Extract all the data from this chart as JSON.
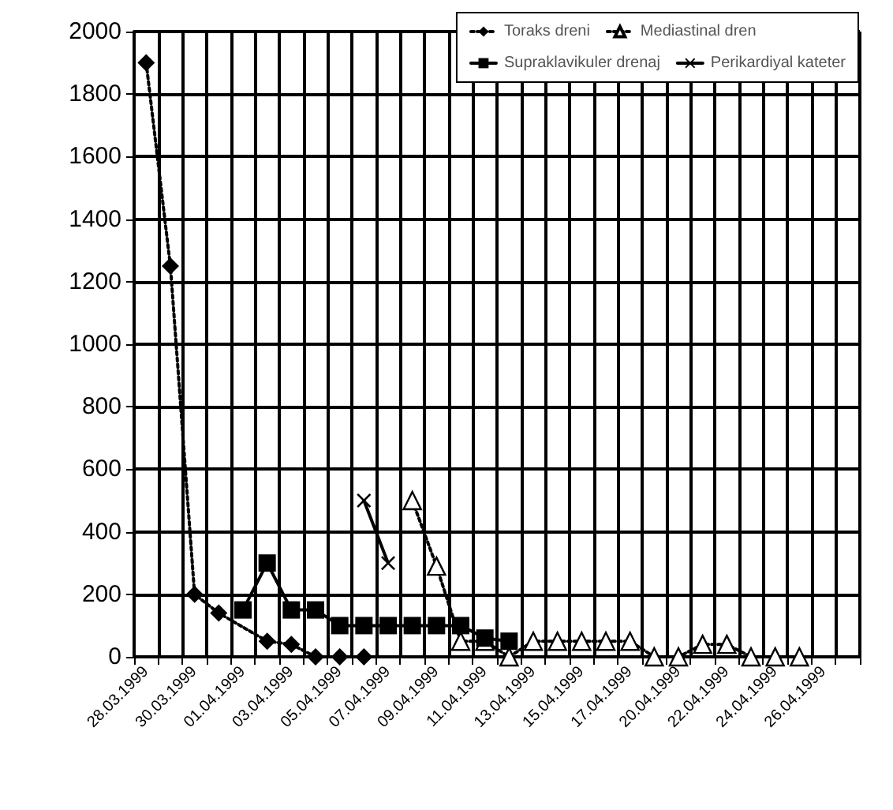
{
  "chart_data": {
    "type": "line",
    "categories": [
      "28.03.1999",
      null,
      "30.03.1999",
      null,
      "01.04.1999",
      null,
      "03.04.1999",
      null,
      "05.04.1999",
      null,
      "07.04.1999",
      null,
      "09.04.1999",
      null,
      "11.04.1999",
      null,
      "13.04.1999",
      null,
      "15.04.1999",
      null,
      "17.04.1999",
      null,
      "20.04.1999",
      null,
      "22.04.1999",
      null,
      "24.04.1999",
      null,
      "26.04.1999",
      null
    ],
    "series": [
      {
        "name": "Toraks dreni",
        "color": "#000000",
        "marker": "diamond",
        "line_style": "dotted",
        "values": [
          1900,
          1250,
          200,
          140,
          null,
          50,
          40,
          0,
          0,
          0,
          null,
          null,
          null,
          null,
          null,
          null,
          null,
          null,
          null,
          null,
          null,
          null,
          null,
          null,
          null,
          null,
          null,
          null,
          null,
          null
        ]
      },
      {
        "name": "Mediastinal dren",
        "color": "#000000",
        "marker": "triangle",
        "line_style": "dotted",
        "values": [
          null,
          null,
          null,
          null,
          null,
          null,
          null,
          null,
          null,
          null,
          null,
          500,
          290,
          50,
          50,
          0,
          50,
          50,
          50,
          50,
          50,
          0,
          0,
          40,
          40,
          0,
          0,
          0,
          null,
          null
        ]
      },
      {
        "name": "Supraklavikuler drenaj",
        "color": "#000000",
        "marker": "square",
        "line_style": "solid",
        "values": [
          null,
          null,
          null,
          null,
          150,
          300,
          150,
          150,
          100,
          100,
          100,
          100,
          100,
          100,
          60,
          50,
          null,
          null,
          null,
          null,
          null,
          null,
          null,
          null,
          null,
          null,
          null,
          null,
          null,
          null
        ]
      },
      {
        "name": "Perikardiyal kateter",
        "color": "#000000",
        "marker": "cross",
        "line_style": "solid",
        "values": [
          null,
          null,
          null,
          null,
          null,
          null,
          null,
          null,
          null,
          500,
          300,
          null,
          null,
          null,
          null,
          null,
          null,
          null,
          null,
          null,
          null,
          null,
          null,
          null,
          null,
          null,
          null,
          null,
          null,
          null
        ]
      }
    ],
    "ylim": [
      0,
      2000
    ],
    "yticks": [
      0,
      200,
      400,
      600,
      800,
      1000,
      1200,
      1400,
      1600,
      1800,
      2000
    ],
    "grid": true,
    "legend": "top right"
  }
}
